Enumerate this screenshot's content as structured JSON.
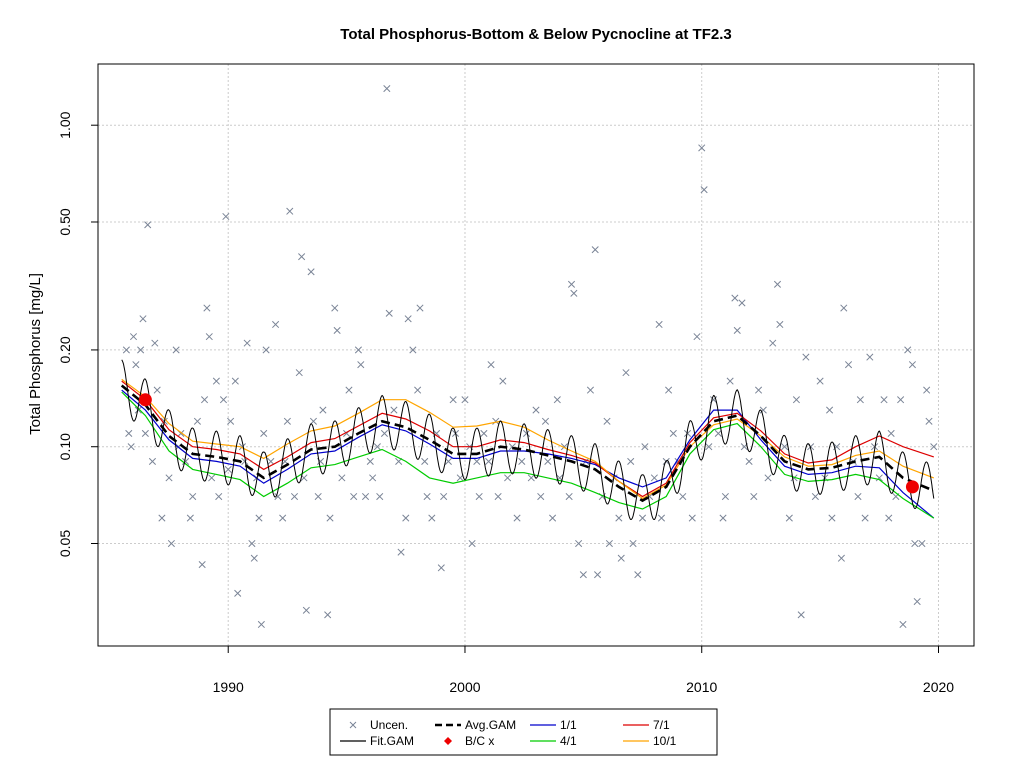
{
  "chart_data": {
    "type": "scatter",
    "title": "Total Phosphorus-Bottom & Below Pycnocline at TF2.3",
    "xlabel": "",
    "ylabel": "Total Phosphorus [mg/L]",
    "x_scale": "linear",
    "y_scale": "log",
    "xlim": [
      1984.5,
      2021.5
    ],
    "ylim": [
      0.024,
      1.55
    ],
    "x_ticks": [
      1990,
      2000,
      2010,
      2020
    ],
    "x_tick_labels": [
      "1990",
      "2000",
      "2010",
      "2020"
    ],
    "y_ticks": [
      0.05,
      0.1,
      0.2,
      0.5,
      1.0
    ],
    "y_tick_labels": [
      "0.05",
      "0.10",
      "0.20",
      "0.50",
      "1.00"
    ],
    "grid": true,
    "legend_position": "bottom-center",
    "legend": [
      {
        "label": "Uncen.",
        "kind": "cross",
        "color": "#7a8496"
      },
      {
        "label": "Avg.GAM",
        "kind": "dashed",
        "color": "#000000"
      },
      {
        "label": "1/1",
        "kind": "line",
        "color": "#0000cc"
      },
      {
        "label": "7/1",
        "kind": "line",
        "color": "#dd0000"
      },
      {
        "label": "Fit.GAM",
        "kind": "line",
        "color": "#000000"
      },
      {
        "label": "B/C x",
        "kind": "dot",
        "color": "#ee0000"
      },
      {
        "label": "4/1",
        "kind": "line",
        "color": "#00cc00"
      },
      {
        "label": "10/1",
        "kind": "line",
        "color": "#ffa500"
      }
    ],
    "colors": {
      "uncen": "#7a8496",
      "avg": "#000000",
      "fit": "#000000",
      "s1": "#0000cc",
      "s4": "#00cc00",
      "s7": "#dd0000",
      "s10": "#ffa500",
      "bc": "#ee0000"
    },
    "avg_gam": {
      "x": [
        1985.5,
        1986.5,
        1987.5,
        1988.5,
        1989.5,
        1990.5,
        1991.5,
        1992.5,
        1993.5,
        1994.5,
        1995.5,
        1996.5,
        1997.5,
        1998.5,
        1999.5,
        2000.5,
        2001.5,
        2002.5,
        2003.5,
        2004.5,
        2005.5,
        2006.5,
        2007.5,
        2008.5,
        2009.5,
        2010.5,
        2011.5,
        2012.5,
        2013.5,
        2014.5,
        2015.5,
        2016.5,
        2017.5,
        2018.5,
        2019.8
      ],
      "y": [
        0.155,
        0.135,
        0.108,
        0.095,
        0.093,
        0.09,
        0.08,
        0.088,
        0.098,
        0.1,
        0.11,
        0.12,
        0.115,
        0.105,
        0.095,
        0.095,
        0.1,
        0.098,
        0.094,
        0.09,
        0.085,
        0.075,
        0.068,
        0.075,
        0.1,
        0.12,
        0.125,
        0.108,
        0.09,
        0.085,
        0.086,
        0.09,
        0.093,
        0.08,
        0.073
      ]
    },
    "series": [
      {
        "name": "1/1",
        "key": "s1",
        "x": [
          1985.5,
          1986.5,
          1987.5,
          1988.5,
          1989.5,
          1990.5,
          1991.5,
          1992.5,
          1993.5,
          1994.5,
          1995.5,
          1996.5,
          1997.5,
          1998.5,
          1999.5,
          2000.5,
          2001.5,
          2002.5,
          2003.5,
          2004.5,
          2005.5,
          2006.5,
          2007.5,
          2008.5,
          2009.5,
          2010.5,
          2011.5,
          2012.5,
          2013.5,
          2014.5,
          2015.5,
          2016.5,
          2017.5,
          2018.5,
          2019.8
        ],
        "y": [
          0.15,
          0.13,
          0.105,
          0.092,
          0.09,
          0.087,
          0.077,
          0.085,
          0.095,
          0.097,
          0.107,
          0.117,
          0.112,
          0.102,
          0.092,
          0.092,
          0.097,
          0.097,
          0.095,
          0.092,
          0.088,
          0.08,
          0.075,
          0.08,
          0.105,
          0.13,
          0.13,
          0.105,
          0.087,
          0.082,
          0.083,
          0.087,
          0.086,
          0.072,
          0.06
        ]
      },
      {
        "name": "4/1",
        "key": "s4",
        "x": [
          1985.5,
          1986.5,
          1987.5,
          1988.5,
          1989.5,
          1990.5,
          1991.5,
          1992.5,
          1993.5,
          1994.5,
          1995.5,
          1996.5,
          1997.5,
          1998.5,
          1999.5,
          2000.5,
          2001.5,
          2002.5,
          2003.5,
          2004.5,
          2005.5,
          2006.5,
          2007.5,
          2008.5,
          2009.5,
          2010.5,
          2011.5,
          2012.5,
          2013.5,
          2014.5,
          2015.5,
          2016.5,
          2017.5,
          2018.5,
          2019.8
        ],
        "y": [
          0.148,
          0.125,
          0.097,
          0.085,
          0.082,
          0.079,
          0.07,
          0.077,
          0.086,
          0.088,
          0.093,
          0.098,
          0.09,
          0.08,
          0.077,
          0.08,
          0.083,
          0.083,
          0.08,
          0.077,
          0.072,
          0.067,
          0.064,
          0.07,
          0.095,
          0.113,
          0.118,
          0.1,
          0.082,
          0.078,
          0.079,
          0.082,
          0.079,
          0.069,
          0.06
        ]
      },
      {
        "name": "7/1",
        "key": "s7",
        "x": [
          1985.5,
          1986.5,
          1987.5,
          1988.5,
          1989.5,
          1990.5,
          1991.5,
          1992.5,
          1993.5,
          1994.5,
          1995.5,
          1996.5,
          1997.5,
          1998.5,
          1999.5,
          2000.5,
          2001.5,
          2002.5,
          2003.5,
          2004.5,
          2005.5,
          2006.5,
          2007.5,
          2008.5,
          2009.5,
          2010.5,
          2011.5,
          2012.5,
          2013.5,
          2014.5,
          2015.5,
          2016.5,
          2017.5,
          2018.5,
          2019.8
        ],
        "y": [
          0.16,
          0.14,
          0.113,
          0.1,
          0.098,
          0.095,
          0.085,
          0.093,
          0.103,
          0.106,
          0.116,
          0.127,
          0.122,
          0.112,
          0.1,
          0.1,
          0.105,
          0.103,
          0.098,
          0.094,
          0.089,
          0.078,
          0.07,
          0.077,
          0.103,
          0.123,
          0.127,
          0.112,
          0.095,
          0.089,
          0.091,
          0.1,
          0.108,
          0.1,
          0.093
        ]
      },
      {
        "name": "10/1",
        "key": "s10",
        "x": [
          1985.5,
          1986.5,
          1987.5,
          1988.5,
          1989.5,
          1990.5,
          1991.5,
          1992.5,
          1993.5,
          1994.5,
          1995.5,
          1996.5,
          1997.5,
          1998.5,
          1999.5,
          2000.5,
          2001.5,
          2002.5,
          2003.5,
          2004.5,
          2005.5,
          2006.5,
          2007.5,
          2008.5,
          2009.5,
          2010.5,
          2011.5,
          2012.5,
          2013.5,
          2014.5,
          2015.5,
          2016.5,
          2017.5,
          2018.5,
          2019.8
        ],
        "y": [
          0.162,
          0.143,
          0.118,
          0.104,
          0.102,
          0.1,
          0.092,
          0.102,
          0.112,
          0.116,
          0.127,
          0.14,
          0.14,
          0.128,
          0.115,
          0.116,
          0.12,
          0.115,
          0.105,
          0.097,
          0.09,
          0.078,
          0.069,
          0.076,
          0.1,
          0.117,
          0.122,
          0.108,
          0.093,
          0.087,
          0.088,
          0.094,
          0.097,
          0.087,
          0.08
        ]
      }
    ],
    "fit_gam": {
      "amplitude_log10": 0.08,
      "cycles_per_year": 1
    },
    "bc_points": {
      "x": [
        1986.5,
        2018.9
      ],
      "y": [
        0.14,
        0.075
      ]
    },
    "uncen_points": [
      [
        1985.7,
        0.2
      ],
      [
        1985.8,
        0.11
      ],
      [
        1985.9,
        0.1
      ],
      [
        1986.0,
        0.22
      ],
      [
        1986.1,
        0.18
      ],
      [
        1986.2,
        0.13
      ],
      [
        1986.3,
        0.2
      ],
      [
        1986.4,
        0.25
      ],
      [
        1986.5,
        0.11
      ],
      [
        1986.6,
        0.49
      ],
      [
        1986.8,
        0.09
      ],
      [
        1986.9,
        0.21
      ],
      [
        1987.0,
        0.15
      ],
      [
        1987.2,
        0.06
      ],
      [
        1987.3,
        0.12
      ],
      [
        1987.5,
        0.08
      ],
      [
        1987.6,
        0.05
      ],
      [
        1987.8,
        0.2
      ],
      [
        1987.9,
        0.1
      ],
      [
        1988.0,
        0.11
      ],
      [
        1988.2,
        0.09
      ],
      [
        1988.4,
        0.06
      ],
      [
        1988.5,
        0.07
      ],
      [
        1988.7,
        0.12
      ],
      [
        1988.9,
        0.043
      ],
      [
        1989.0,
        0.14
      ],
      [
        1989.1,
        0.27
      ],
      [
        1989.2,
        0.22
      ],
      [
        1989.3,
        0.08
      ],
      [
        1989.5,
        0.16
      ],
      [
        1989.6,
        0.07
      ],
      [
        1989.8,
        0.14
      ],
      [
        1989.9,
        0.52
      ],
      [
        1990.0,
        0.085
      ],
      [
        1990.1,
        0.12
      ],
      [
        1990.3,
        0.16
      ],
      [
        1990.4,
        0.035
      ],
      [
        1990.6,
        0.1
      ],
      [
        1990.7,
        0.09
      ],
      [
        1990.8,
        0.21
      ],
      [
        1991.0,
        0.05
      ],
      [
        1991.1,
        0.045
      ],
      [
        1991.2,
        0.08
      ],
      [
        1991.3,
        0.06
      ],
      [
        1991.4,
        0.028
      ],
      [
        1991.5,
        0.11
      ],
      [
        1991.6,
        0.2
      ],
      [
        1991.8,
        0.09
      ],
      [
        1992.0,
        0.24
      ],
      [
        1992.1,
        0.07
      ],
      [
        1992.3,
        0.06
      ],
      [
        1992.4,
        0.09
      ],
      [
        1992.5,
        0.12
      ],
      [
        1992.6,
        0.54
      ],
      [
        1992.8,
        0.07
      ],
      [
        1993.0,
        0.17
      ],
      [
        1993.1,
        0.39
      ],
      [
        1993.2,
        0.08
      ],
      [
        1993.3,
        0.031
      ],
      [
        1993.5,
        0.35
      ],
      [
        1993.6,
        0.12
      ],
      [
        1993.8,
        0.07
      ],
      [
        1993.9,
        0.09
      ],
      [
        1994.0,
        0.13
      ],
      [
        1994.2,
        0.03
      ],
      [
        1994.3,
        0.06
      ],
      [
        1994.5,
        0.27
      ],
      [
        1994.6,
        0.23
      ],
      [
        1994.8,
        0.08
      ],
      [
        1995.0,
        0.11
      ],
      [
        1995.1,
        0.15
      ],
      [
        1995.3,
        0.07
      ],
      [
        1995.5,
        0.2
      ],
      [
        1995.6,
        0.18
      ],
      [
        1995.8,
        0.07
      ],
      [
        1996.0,
        0.09
      ],
      [
        1996.1,
        0.08
      ],
      [
        1996.3,
        0.1
      ],
      [
        1996.4,
        0.07
      ],
      [
        1996.6,
        0.11
      ],
      [
        1996.7,
        1.3
      ],
      [
        1996.8,
        0.26
      ],
      [
        1997.0,
        0.13
      ],
      [
        1997.2,
        0.09
      ],
      [
        1997.3,
        0.047
      ],
      [
        1997.5,
        0.06
      ],
      [
        1997.6,
        0.25
      ],
      [
        1997.8,
        0.2
      ],
      [
        1998.0,
        0.15
      ],
      [
        1998.1,
        0.27
      ],
      [
        1998.3,
        0.09
      ],
      [
        1998.4,
        0.07
      ],
      [
        1998.6,
        0.06
      ],
      [
        1998.8,
        0.11
      ],
      [
        1999.0,
        0.042
      ],
      [
        1999.1,
        0.07
      ],
      [
        1999.3,
        0.09
      ],
      [
        1999.5,
        0.14
      ],
      [
        1999.6,
        0.11
      ],
      [
        1999.8,
        0.08
      ],
      [
        2000.0,
        0.14
      ],
      [
        2000.2,
        0.1
      ],
      [
        2000.3,
        0.05
      ],
      [
        2000.5,
        0.09
      ],
      [
        2000.6,
        0.07
      ],
      [
        2000.8,
        0.11
      ],
      [
        2001.0,
        0.09
      ],
      [
        2001.1,
        0.18
      ],
      [
        2001.3,
        0.12
      ],
      [
        2001.4,
        0.07
      ],
      [
        2001.6,
        0.16
      ],
      [
        2001.8,
        0.08
      ],
      [
        2002.0,
        0.1
      ],
      [
        2002.2,
        0.06
      ],
      [
        2002.4,
        0.09
      ],
      [
        2002.6,
        0.11
      ],
      [
        2002.8,
        0.08
      ],
      [
        2003.0,
        0.13
      ],
      [
        2003.2,
        0.07
      ],
      [
        2003.4,
        0.12
      ],
      [
        2003.5,
        0.09
      ],
      [
        2003.7,
        0.06
      ],
      [
        2003.9,
        0.14
      ],
      [
        2004.0,
        0.08
      ],
      [
        2004.2,
        0.1
      ],
      [
        2004.4,
        0.07
      ],
      [
        2004.5,
        0.32
      ],
      [
        2004.6,
        0.3
      ],
      [
        2004.8,
        0.05
      ],
      [
        2005.0,
        0.04
      ],
      [
        2005.1,
        0.09
      ],
      [
        2005.3,
        0.15
      ],
      [
        2005.5,
        0.41
      ],
      [
        2005.6,
        0.04
      ],
      [
        2005.8,
        0.07
      ],
      [
        2006.0,
        0.12
      ],
      [
        2006.1,
        0.05
      ],
      [
        2006.3,
        0.08
      ],
      [
        2006.5,
        0.06
      ],
      [
        2006.6,
        0.045
      ],
      [
        2006.8,
        0.17
      ],
      [
        2007.0,
        0.09
      ],
      [
        2007.1,
        0.05
      ],
      [
        2007.3,
        0.04
      ],
      [
        2007.5,
        0.06
      ],
      [
        2007.6,
        0.1
      ],
      [
        2007.8,
        0.07
      ],
      [
        2008.0,
        0.08
      ],
      [
        2008.2,
        0.24
      ],
      [
        2008.3,
        0.06
      ],
      [
        2008.5,
        0.09
      ],
      [
        2008.6,
        0.15
      ],
      [
        2008.8,
        0.11
      ],
      [
        2009.0,
        0.09
      ],
      [
        2009.2,
        0.07
      ],
      [
        2009.4,
        0.11
      ],
      [
        2009.6,
        0.06
      ],
      [
        2009.8,
        0.22
      ],
      [
        2010.0,
        0.85
      ],
      [
        2010.1,
        0.63
      ],
      [
        2010.3,
        0.1
      ],
      [
        2010.5,
        0.14
      ],
      [
        2010.7,
        0.11
      ],
      [
        2010.9,
        0.06
      ],
      [
        2011.0,
        0.07
      ],
      [
        2011.2,
        0.16
      ],
      [
        2011.4,
        0.29
      ],
      [
        2011.5,
        0.23
      ],
      [
        2011.7,
        0.28
      ],
      [
        2011.8,
        0.1
      ],
      [
        2012.0,
        0.09
      ],
      [
        2012.2,
        0.07
      ],
      [
        2012.4,
        0.15
      ],
      [
        2012.6,
        0.13
      ],
      [
        2012.8,
        0.08
      ],
      [
        2013.0,
        0.21
      ],
      [
        2013.2,
        0.32
      ],
      [
        2013.3,
        0.24
      ],
      [
        2013.5,
        0.1
      ],
      [
        2013.7,
        0.06
      ],
      [
        2013.9,
        0.08
      ],
      [
        2014.0,
        0.14
      ],
      [
        2014.2,
        0.03
      ],
      [
        2014.4,
        0.19
      ],
      [
        2014.6,
        0.1
      ],
      [
        2014.8,
        0.07
      ],
      [
        2015.0,
        0.16
      ],
      [
        2015.2,
        0.08
      ],
      [
        2015.4,
        0.13
      ],
      [
        2015.5,
        0.06
      ],
      [
        2015.7,
        0.1
      ],
      [
        2015.9,
        0.045
      ],
      [
        2016.0,
        0.27
      ],
      [
        2016.2,
        0.18
      ],
      [
        2016.4,
        0.09
      ],
      [
        2016.6,
        0.07
      ],
      [
        2016.7,
        0.14
      ],
      [
        2016.9,
        0.06
      ],
      [
        2017.1,
        0.19
      ],
      [
        2017.3,
        0.1
      ],
      [
        2017.5,
        0.08
      ],
      [
        2017.7,
        0.14
      ],
      [
        2017.9,
        0.06
      ],
      [
        2018.0,
        0.11
      ],
      [
        2018.2,
        0.07
      ],
      [
        2018.4,
        0.14
      ],
      [
        2018.5,
        0.028
      ],
      [
        2018.7,
        0.2
      ],
      [
        2018.9,
        0.18
      ],
      [
        2019.0,
        0.05
      ],
      [
        2019.1,
        0.033
      ],
      [
        2019.3,
        0.05
      ],
      [
        2019.5,
        0.15
      ],
      [
        2019.6,
        0.12
      ],
      [
        2019.8,
        0.1
      ]
    ]
  }
}
